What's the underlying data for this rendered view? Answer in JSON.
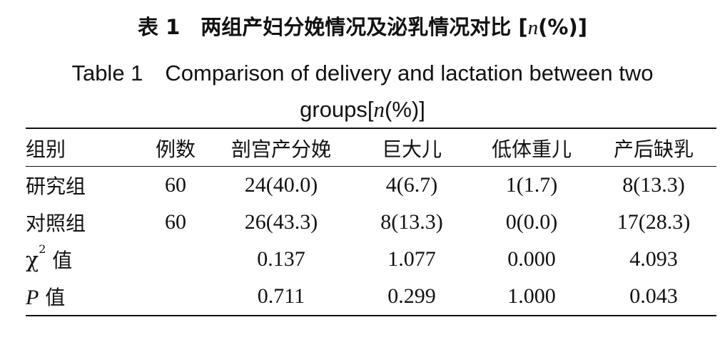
{
  "title": {
    "cn_prefix": "表 1　两组产妇分娩情况及泌乳情况对比 [",
    "cn_var": "n",
    "cn_suffix": "(%)]",
    "en_line1": "Table 1　Comparison of delivery and lactation between two",
    "en_line2_prefix": "groups[",
    "en_var": "n",
    "en_line2_suffix": "(%)]"
  },
  "table": {
    "headers": [
      "组别",
      "例数",
      "剖宫产分娩",
      "巨大儿",
      "低体重儿",
      "产后缺乳"
    ],
    "rows": [
      [
        "研究组",
        "60",
        "24(40.0)",
        "4(6.7)",
        "1(1.7)",
        "8(13.3)"
      ],
      [
        "对照组",
        "60",
        "26(43.3)",
        "8(13.3)",
        "0(0.0)",
        "17(28.3)"
      ]
    ],
    "chi_row": {
      "label_symbol": "χ",
      "label_sup": "2",
      "label_suffix": " 值",
      "values": [
        "0.137",
        "1.077",
        "0.000",
        "4.093"
      ]
    },
    "p_row": {
      "label_symbol": "P",
      "label_suffix": " 值",
      "values": [
        "0.711",
        "0.299",
        "1.000",
        "0.043"
      ]
    }
  }
}
